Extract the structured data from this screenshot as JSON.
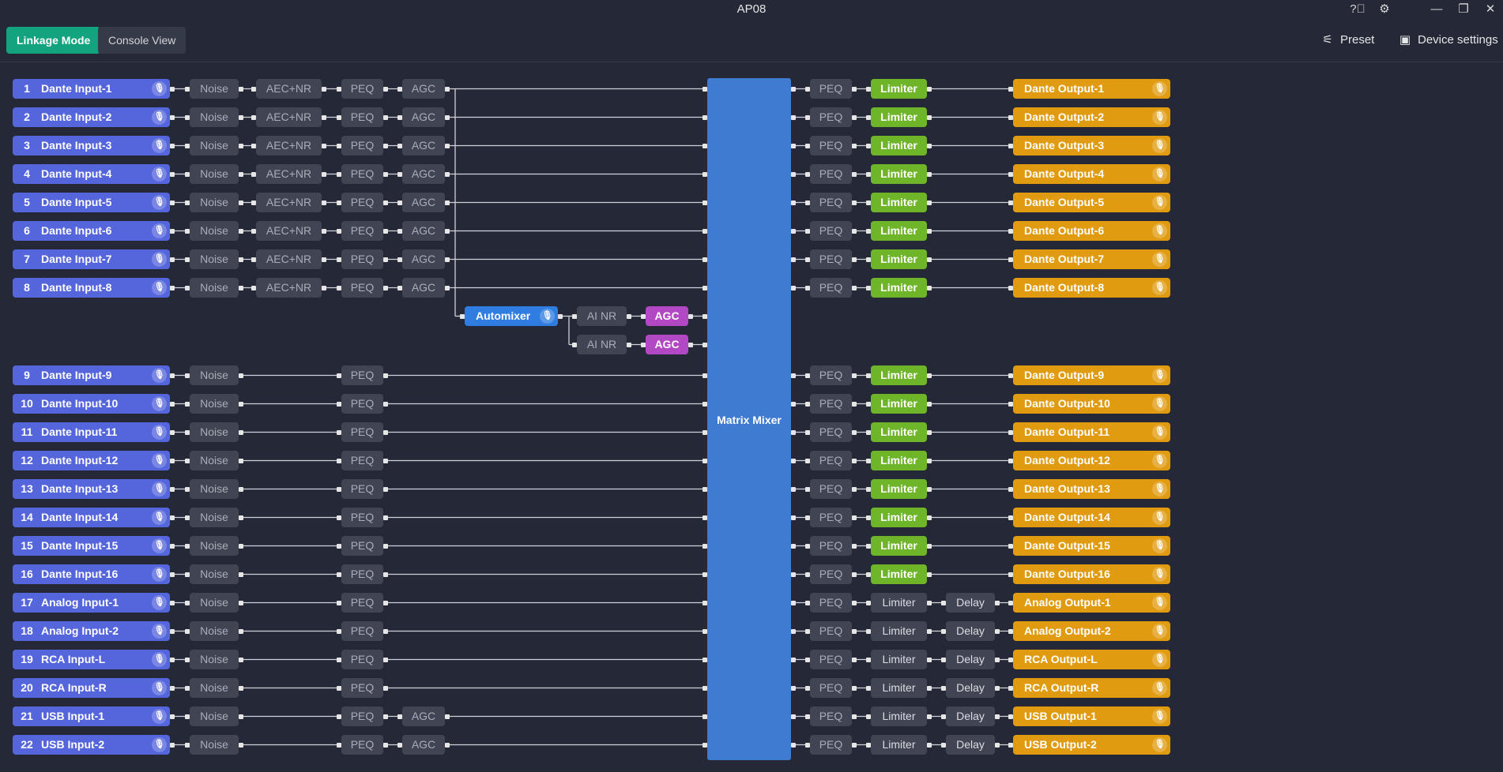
{
  "window": {
    "title": "AP08",
    "help_icon": "question-circle-icon",
    "settings_icon": "gear-icon",
    "minimize_icon": "minimize-icon",
    "restore_icon": "restore-icon",
    "close_icon": "close-icon"
  },
  "toolbar": {
    "linkage_mode_label": "Linkage Mode",
    "console_view_label": "Console View",
    "preset_label": "Preset",
    "preset_icon": "sliders-icon",
    "device_settings_label": "Device settings",
    "device_settings_icon": "device-settings-icon"
  },
  "matrix": {
    "label": "Matrix Mixer"
  },
  "automixer": {
    "label": "Automixer",
    "chains": [
      {
        "nr": "AI NR",
        "agc": "AGC"
      },
      {
        "nr": "AI NR",
        "agc": "AGC"
      }
    ]
  },
  "inputs": [
    {
      "num": "1",
      "name": "Dante Input-1",
      "noise": "Noise",
      "aec": "AEC+NR",
      "peq": "PEQ",
      "agc": "AGC"
    },
    {
      "num": "2",
      "name": "Dante Input-2",
      "noise": "Noise",
      "aec": "AEC+NR",
      "peq": "PEQ",
      "agc": "AGC"
    },
    {
      "num": "3",
      "name": "Dante Input-3",
      "noise": "Noise",
      "aec": "AEC+NR",
      "peq": "PEQ",
      "agc": "AGC"
    },
    {
      "num": "4",
      "name": "Dante Input-4",
      "noise": "Noise",
      "aec": "AEC+NR",
      "peq": "PEQ",
      "agc": "AGC"
    },
    {
      "num": "5",
      "name": "Dante Input-5",
      "noise": "Noise",
      "aec": "AEC+NR",
      "peq": "PEQ",
      "agc": "AGC"
    },
    {
      "num": "6",
      "name": "Dante Input-6",
      "noise": "Noise",
      "aec": "AEC+NR",
      "peq": "PEQ",
      "agc": "AGC"
    },
    {
      "num": "7",
      "name": "Dante Input-7",
      "noise": "Noise",
      "aec": "AEC+NR",
      "peq": "PEQ",
      "agc": "AGC"
    },
    {
      "num": "8",
      "name": "Dante Input-8",
      "noise": "Noise",
      "aec": "AEC+NR",
      "peq": "PEQ",
      "agc": "AGC"
    },
    {
      "num": "9",
      "name": "Dante Input-9",
      "noise": "Noise",
      "peq": "PEQ"
    },
    {
      "num": "10",
      "name": "Dante Input-10",
      "noise": "Noise",
      "peq": "PEQ"
    },
    {
      "num": "11",
      "name": "Dante Input-11",
      "noise": "Noise",
      "peq": "PEQ"
    },
    {
      "num": "12",
      "name": "Dante Input-12",
      "noise": "Noise",
      "peq": "PEQ"
    },
    {
      "num": "13",
      "name": "Dante Input-13",
      "noise": "Noise",
      "peq": "PEQ"
    },
    {
      "num": "14",
      "name": "Dante Input-14",
      "noise": "Noise",
      "peq": "PEQ"
    },
    {
      "num": "15",
      "name": "Dante Input-15",
      "noise": "Noise",
      "peq": "PEQ"
    },
    {
      "num": "16",
      "name": "Dante Input-16",
      "noise": "Noise",
      "peq": "PEQ"
    },
    {
      "num": "17",
      "name": "Analog Input-1",
      "noise": "Noise",
      "peq": "PEQ"
    },
    {
      "num": "18",
      "name": "Analog Input-2",
      "noise": "Noise",
      "peq": "PEQ"
    },
    {
      "num": "19",
      "name": "RCA Input-L",
      "noise": "Noise",
      "peq": "PEQ"
    },
    {
      "num": "20",
      "name": "RCA Input-R",
      "noise": "Noise",
      "peq": "PEQ"
    },
    {
      "num": "21",
      "name": "USB Input-1",
      "noise": "Noise",
      "peq": "PEQ",
      "agc": "AGC"
    },
    {
      "num": "22",
      "name": "USB Input-2",
      "noise": "Noise",
      "peq": "PEQ",
      "agc": "AGC"
    }
  ],
  "outputs": [
    {
      "name": "Dante Output-1",
      "peq": "PEQ",
      "limiter": "Limiter",
      "limiter_active": true
    },
    {
      "name": "Dante Output-2",
      "peq": "PEQ",
      "limiter": "Limiter",
      "limiter_active": true
    },
    {
      "name": "Dante Output-3",
      "peq": "PEQ",
      "limiter": "Limiter",
      "limiter_active": true
    },
    {
      "name": "Dante Output-4",
      "peq": "PEQ",
      "limiter": "Limiter",
      "limiter_active": true
    },
    {
      "name": "Dante Output-5",
      "peq": "PEQ",
      "limiter": "Limiter",
      "limiter_active": true
    },
    {
      "name": "Dante Output-6",
      "peq": "PEQ",
      "limiter": "Limiter",
      "limiter_active": true
    },
    {
      "name": "Dante Output-7",
      "peq": "PEQ",
      "limiter": "Limiter",
      "limiter_active": true
    },
    {
      "name": "Dante Output-8",
      "peq": "PEQ",
      "limiter": "Limiter",
      "limiter_active": true
    },
    {
      "name": "Dante Output-9",
      "peq": "PEQ",
      "limiter": "Limiter",
      "limiter_active": true
    },
    {
      "name": "Dante Output-10",
      "peq": "PEQ",
      "limiter": "Limiter",
      "limiter_active": true
    },
    {
      "name": "Dante Output-11",
      "peq": "PEQ",
      "limiter": "Limiter",
      "limiter_active": true
    },
    {
      "name": "Dante Output-12",
      "peq": "PEQ",
      "limiter": "Limiter",
      "limiter_active": true
    },
    {
      "name": "Dante Output-13",
      "peq": "PEQ",
      "limiter": "Limiter",
      "limiter_active": true
    },
    {
      "name": "Dante Output-14",
      "peq": "PEQ",
      "limiter": "Limiter",
      "limiter_active": true
    },
    {
      "name": "Dante Output-15",
      "peq": "PEQ",
      "limiter": "Limiter",
      "limiter_active": true
    },
    {
      "name": "Dante Output-16",
      "peq": "PEQ",
      "limiter": "Limiter",
      "limiter_active": true
    },
    {
      "name": "Analog Output-1",
      "peq": "PEQ",
      "limiter": "Limiter",
      "limiter_active": false,
      "delay": "Delay"
    },
    {
      "name": "Analog Output-2",
      "peq": "PEQ",
      "limiter": "Limiter",
      "limiter_active": false,
      "delay": "Delay"
    },
    {
      "name": "RCA Output-L",
      "peq": "PEQ",
      "limiter": "Limiter",
      "limiter_active": false,
      "delay": "Delay"
    },
    {
      "name": "RCA Output-R",
      "peq": "PEQ",
      "limiter": "Limiter",
      "limiter_active": false,
      "delay": "Delay"
    },
    {
      "name": "USB Output-1",
      "peq": "PEQ",
      "limiter": "Limiter",
      "limiter_active": false,
      "delay": "Delay"
    },
    {
      "name": "USB Output-2",
      "peq": "PEQ",
      "limiter": "Limiter",
      "limiter_active": false,
      "delay": "Delay"
    }
  ],
  "colors": {
    "input_block": "#5566dd",
    "output_block": "#e09b11",
    "limiter_active": "#6fb52a",
    "agc_automix": "#b348c4",
    "matrix": "#3f7bd0",
    "linkage_active": "#14a37f"
  }
}
